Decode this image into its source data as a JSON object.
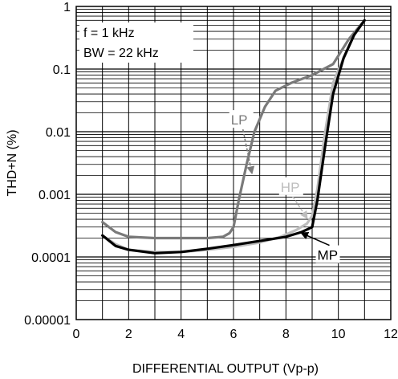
{
  "chart_data": {
    "type": "line",
    "xlabel": "DIFFERENTIAL OUTPUT (Vp-p)",
    "ylabel": "THD+N (%)",
    "xlim": [
      0,
      12
    ],
    "ylim": [
      1e-05,
      1
    ],
    "y_scale": "log",
    "grid": true,
    "x_ticks": [
      0,
      2,
      4,
      6,
      8,
      10,
      12
    ],
    "x_tick_labels": [
      "0",
      "2",
      "4",
      "6",
      "8",
      "10",
      "12"
    ],
    "y_ticks": [
      1e-05,
      0.0001,
      0.001,
      0.01,
      0.1,
      1
    ],
    "y_tick_labels": [
      "0.00001",
      "0.0001",
      "0.001",
      "0.01",
      "0.1",
      "1"
    ],
    "annotations": [
      "f = 1 kHz",
      "BW = 22 kHz"
    ],
    "colors": {
      "LP": "#7a7a7a",
      "HP": "#bdbdbd",
      "MP": "#000000"
    },
    "series": [
      {
        "name": "LP",
        "x": [
          1.0,
          1.5,
          2.0,
          3.0,
          4.0,
          5.0,
          5.6,
          5.85,
          6.0,
          6.2,
          6.5,
          6.8,
          7.2,
          7.6,
          8.2,
          9.0,
          9.8,
          10.4,
          11.0
        ],
        "y": [
          0.00036,
          0.00025,
          0.00021,
          0.0002,
          0.0002,
          0.0002,
          0.00021,
          0.00024,
          0.0003,
          0.0008,
          0.003,
          0.01,
          0.025,
          0.045,
          0.06,
          0.08,
          0.12,
          0.3,
          0.6
        ]
      },
      {
        "name": "HP",
        "x": [
          1.0,
          1.5,
          2.0,
          3.0,
          4.0,
          5.0,
          6.0,
          7.0,
          7.8,
          8.4,
          8.8,
          9.0,
          9.2,
          9.5,
          9.8,
          10.2,
          10.6,
          11.0
        ],
        "y": [
          0.00022,
          0.00016,
          0.00013,
          0.00012,
          0.00012,
          0.00013,
          0.000145,
          0.00017,
          0.00021,
          0.00027,
          0.00034,
          0.00045,
          0.0012,
          0.01,
          0.06,
          0.15,
          0.35,
          0.6
        ]
      },
      {
        "name": "MP",
        "x": [
          1.0,
          1.5,
          2.0,
          3.0,
          4.0,
          5.0,
          6.0,
          7.0,
          8.0,
          8.6,
          9.0,
          9.2,
          9.5,
          9.8,
          10.2,
          10.6,
          11.0
        ],
        "y": [
          0.00022,
          0.00015,
          0.00013,
          0.000115,
          0.00012,
          0.000135,
          0.000155,
          0.00018,
          0.00021,
          0.00025,
          0.0003,
          0.0008,
          0.006,
          0.04,
          0.15,
          0.35,
          0.6
        ]
      }
    ],
    "series_labels": [
      {
        "name": "LP",
        "x": 5.9,
        "y": 0.013,
        "arrow_x": 6.7,
        "arrow_y": 0.0022
      },
      {
        "name": "HP",
        "x": 7.8,
        "y": 0.0011,
        "arrow_x": 8.8,
        "arrow_y": 0.00042
      },
      {
        "name": "MP",
        "x": 9.2,
        "y": 9e-05,
        "arrow_x": 8.6,
        "arrow_y": 0.00024
      }
    ]
  }
}
